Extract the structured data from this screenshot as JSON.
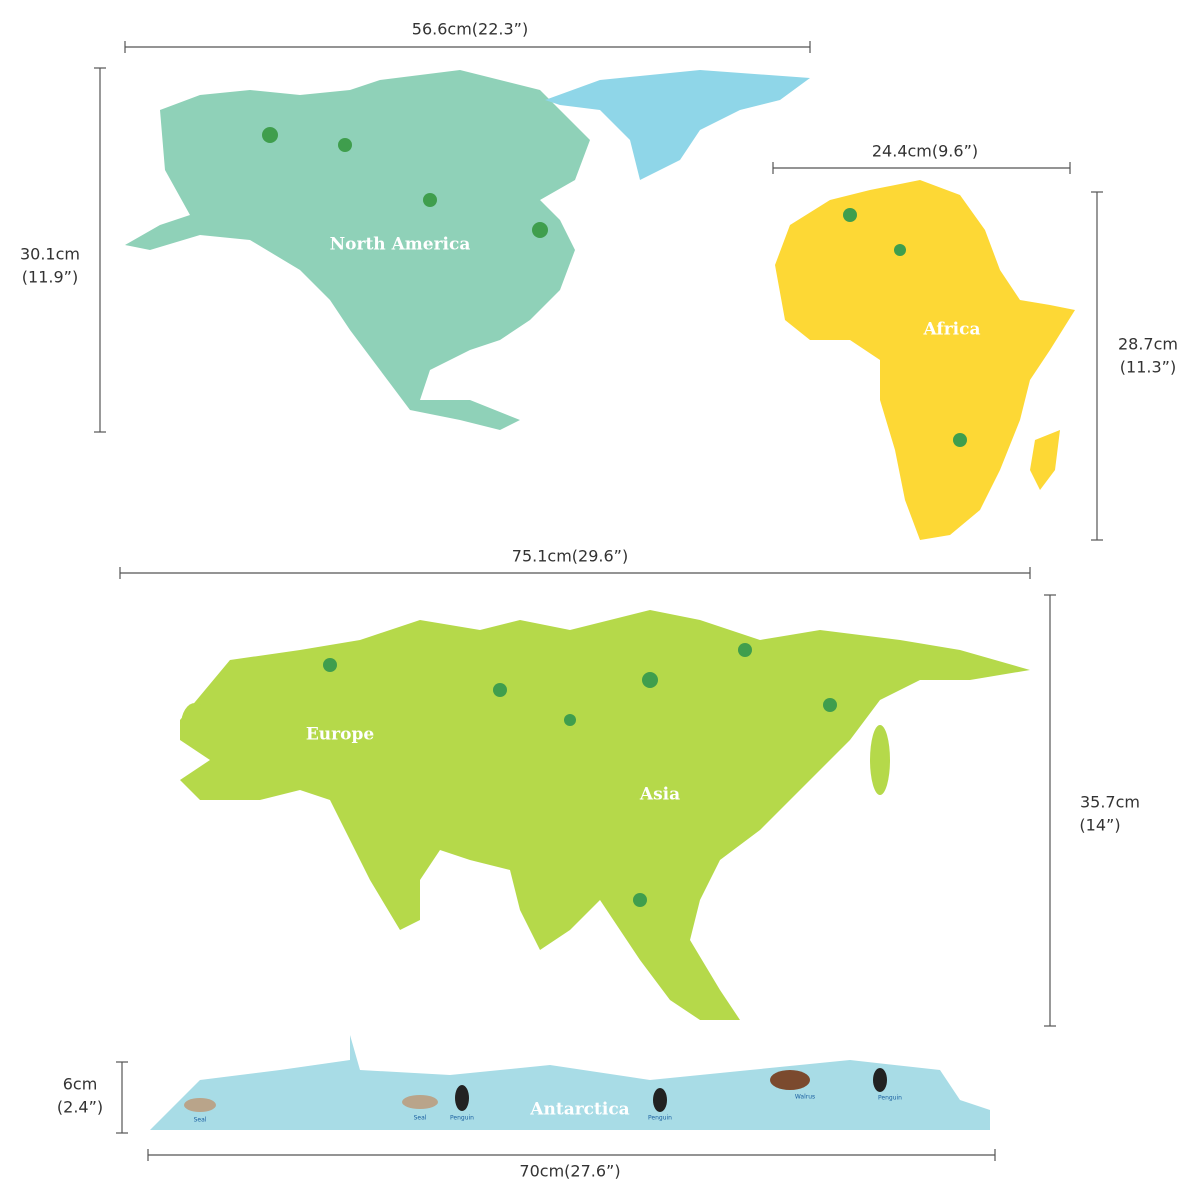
{
  "dimensions": {
    "north_america": {
      "width": "56.6cm(22.3”)",
      "height": [
        "30.1cm",
        "(11.9”)"
      ]
    },
    "africa": {
      "width": "24.4cm(9.6”)",
      "height": [
        "28.7cm",
        "(11.3”)"
      ]
    },
    "eurasia": {
      "width": "75.1cm(29.6”)",
      "height": [
        "35.7cm",
        "(14”)"
      ]
    },
    "antarctica": {
      "width": "70cm(27.6”)",
      "height": [
        "6cm",
        "(2.4”)"
      ]
    }
  },
  "continents": [
    "North America",
    "Africa",
    "Europe",
    "Asia",
    "Antarctica"
  ],
  "animal_labels": [
    "Seal",
    "Seal",
    "Penguin",
    "Penguin",
    "Walrus",
    "Penguin"
  ]
}
